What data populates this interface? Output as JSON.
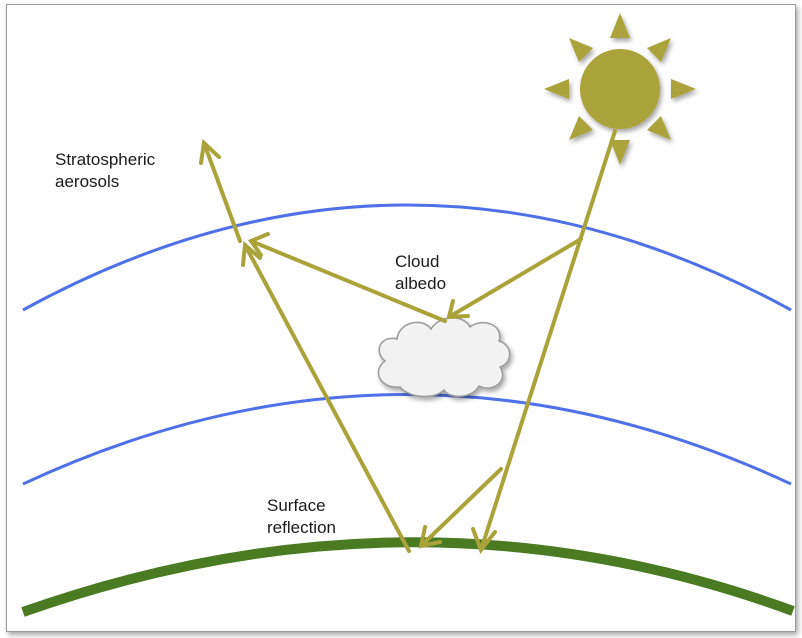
{
  "labels": {
    "stratospheric_line1": "Stratospheric",
    "stratospheric_line2": "aerosols",
    "cloud_line1": "Cloud",
    "cloud_line2": "albedo",
    "surface_line1": "Surface",
    "surface_line2": "reflection"
  },
  "colors": {
    "arrow": "#aaa33a",
    "atmosphere_line": "#5070e8",
    "ground": "#4a7a22",
    "sun": "#aaa33a",
    "cloud_fill": "#f2f2f2",
    "cloud_stroke": "#9a9a9a"
  },
  "icons": {
    "sun": "sun-icon",
    "cloud": "cloud-icon"
  }
}
